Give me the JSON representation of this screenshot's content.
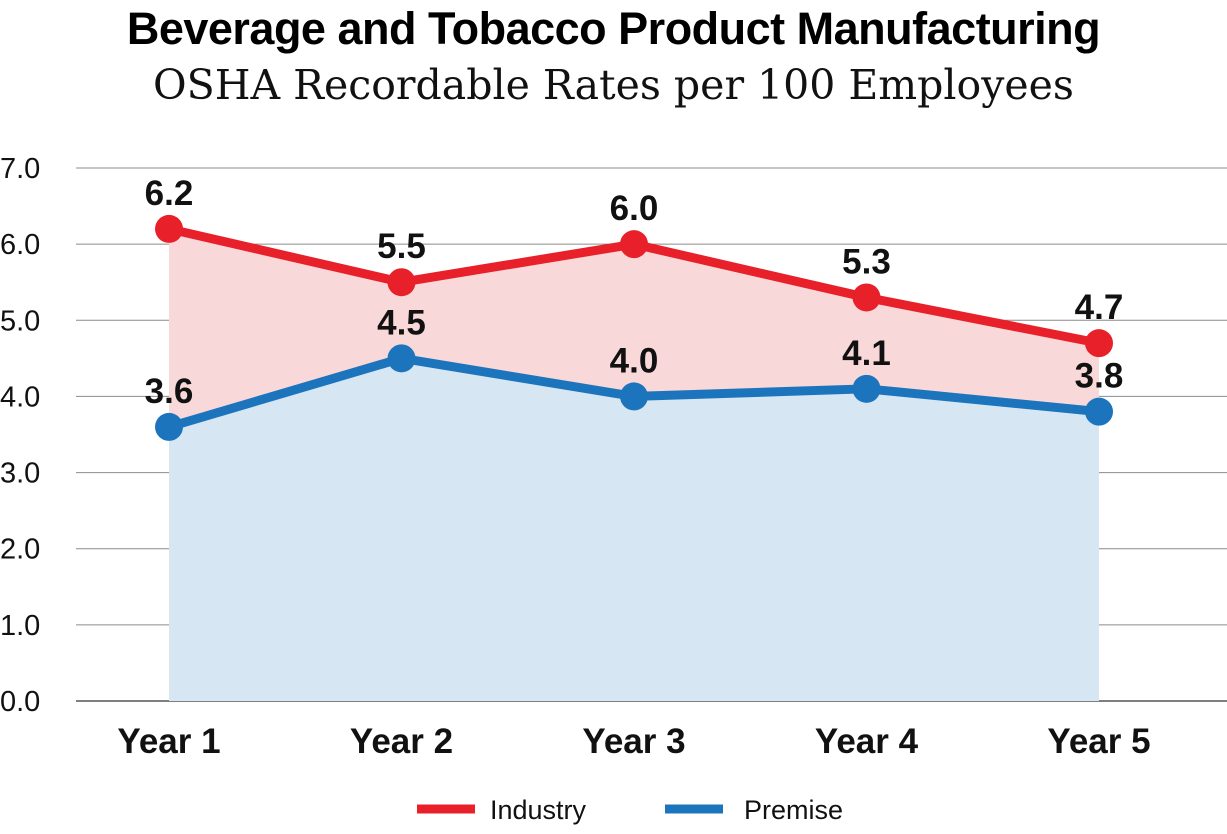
{
  "chart_data": {
    "type": "area",
    "title": "Beverage and Tobacco Product Manufacturing",
    "subtitle": "OSHA Recordable Rates per 100 Employees",
    "categories": [
      "Year 1",
      "Year 2",
      "Year 3",
      "Year 4",
      "Year 5"
    ],
    "ylim": [
      0,
      7
    ],
    "yticks": [
      "0.0",
      "1.0",
      "2.0",
      "3.0",
      "4.0",
      "5.0",
      "6.0",
      "7.0"
    ],
    "grid": true,
    "legend_position": "bottom",
    "series": [
      {
        "name": "Industry",
        "values": [
          6.2,
          5.5,
          6.0,
          5.3,
          4.7
        ],
        "labels": [
          "6.2",
          "5.5",
          "6.0",
          "5.3",
          "4.7"
        ],
        "color": "#e8202a",
        "fill": "#f9d8d9"
      },
      {
        "name": "Premise",
        "values": [
          3.6,
          4.5,
          4.0,
          4.1,
          3.8
        ],
        "labels": [
          "3.6",
          "4.5",
          "4.0",
          "4.1",
          "3.8"
        ],
        "color": "#1c75bc",
        "fill": "#d6e6f2"
      }
    ]
  }
}
